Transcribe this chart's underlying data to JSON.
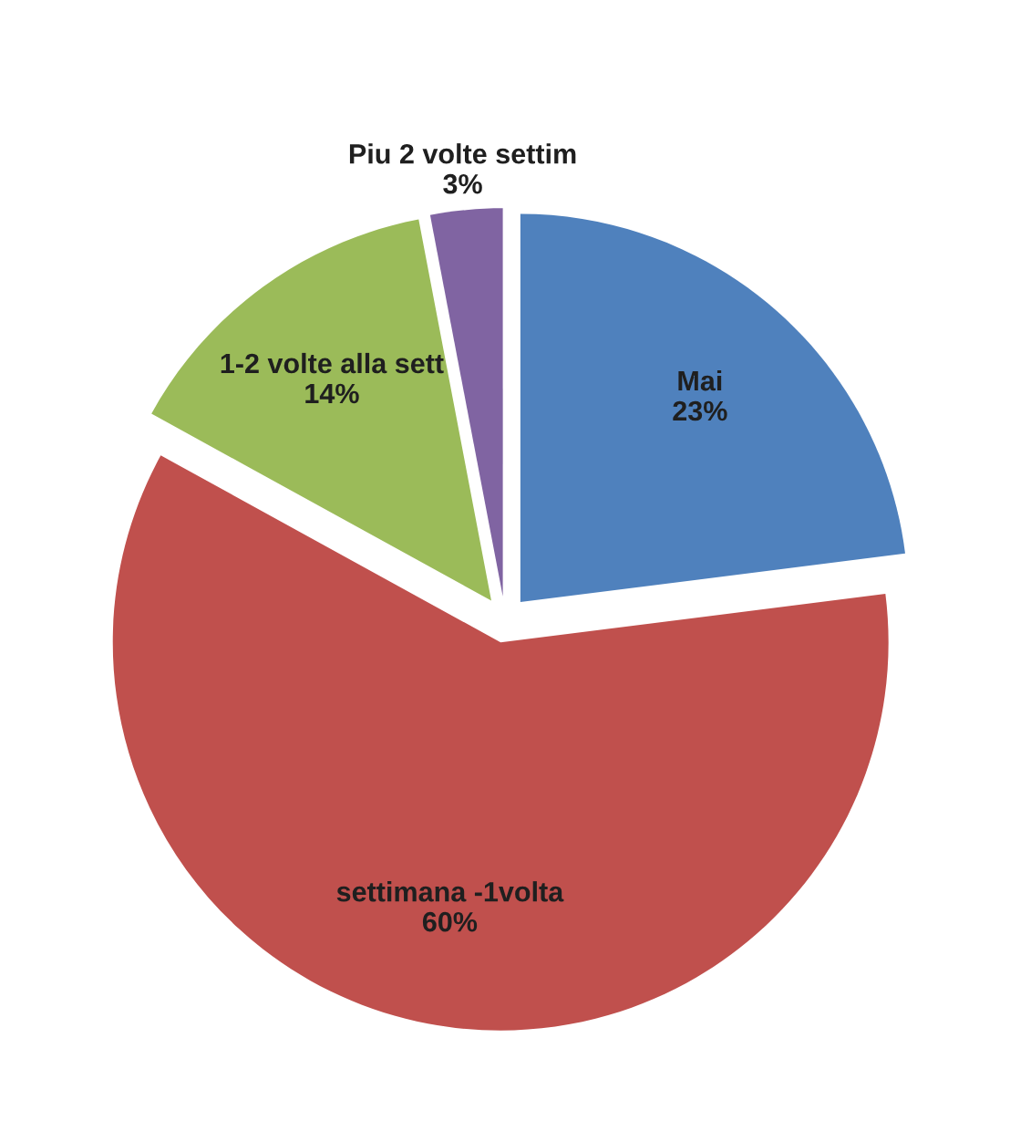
{
  "chart_data": {
    "type": "pie",
    "categories": [
      "Mai",
      "settimana -1volta",
      "1-2 volte alla sett",
      "Piu 2 volte settim"
    ],
    "values": [
      23,
      60,
      14,
      3
    ],
    "colors": [
      "#4f81bd",
      "#c0504d",
      "#9bbb59",
      "#8064a2"
    ],
    "value_labels": [
      "23%",
      "60%",
      "14%",
      "3%"
    ]
  }
}
